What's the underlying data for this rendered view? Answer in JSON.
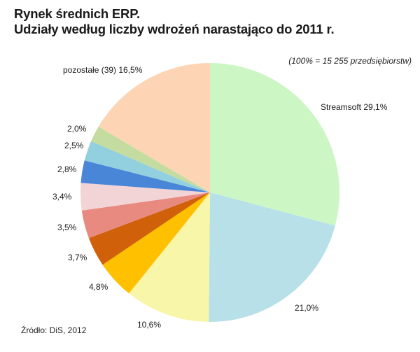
{
  "chart_data": {
    "type": "pie",
    "title": "Rynek średnich ERP.",
    "subtitle": "Udziały według liczby wdrożeń narastająco do 2011 r.",
    "note": "(100% = 15 255 przedsiębiorstw)",
    "source": "Źródło: DiS, 2012",
    "slices": [
      {
        "label": "Streamsoft 29,1%",
        "value": 29.1,
        "color": "#ccf7c4"
      },
      {
        "label": "21,0%",
        "value": 21.0,
        "color": "#b8e0e8"
      },
      {
        "label": "10,6%",
        "value": 10.6,
        "color": "#f8f6a8"
      },
      {
        "label": "4,8%",
        "value": 4.8,
        "color": "#ffc000"
      },
      {
        "label": "3,7%",
        "value": 3.7,
        "color": "#d0600a"
      },
      {
        "label": "3,5%",
        "value": 3.5,
        "color": "#e88a80"
      },
      {
        "label": "3,4%",
        "value": 3.4,
        "color": "#f2d4d6"
      },
      {
        "label": "2,8%",
        "value": 2.8,
        "color": "#4a86d8"
      },
      {
        "label": "2,5%",
        "value": 2.5,
        "color": "#92d0e0"
      },
      {
        "label": "2,0%",
        "value": 2.0,
        "color": "#c4dca0"
      },
      {
        "label": "pozostałe (39) 16,5%",
        "value": 16.5,
        "color": "#fdd5b4"
      }
    ]
  }
}
